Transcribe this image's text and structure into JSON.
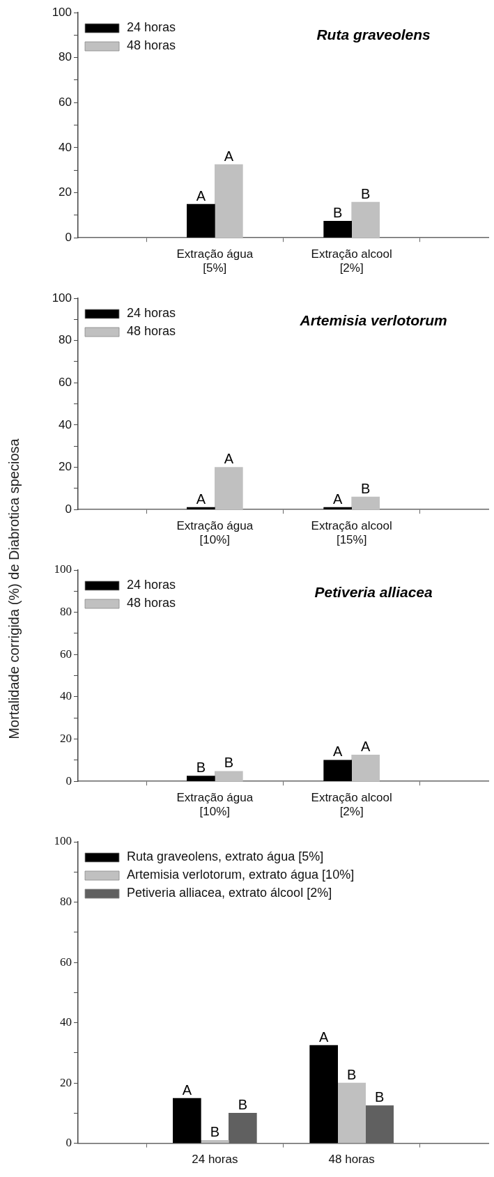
{
  "chart_data": [
    {
      "type": "bar",
      "title": "Ruta graveolens",
      "categories": [
        "Extração água [5%]",
        "Extração alcool [2%]"
      ],
      "series": [
        {
          "name": "24 horas",
          "color": "#000000",
          "values": [
            14.9,
            7.4
          ],
          "value_labels": [
            "A",
            "B"
          ]
        },
        {
          "name": "48 horas",
          "color": "#c0c0c0",
          "values": [
            32.5,
            15.8
          ],
          "value_labels": [
            "A",
            "B"
          ]
        }
      ],
      "ylim": [
        0,
        100
      ],
      "yticks": [
        0,
        {
          "value": 10,
          "label": null
        },
        20,
        {
          "value": 30,
          "label": null
        },
        40,
        {
          "value": 50,
          "label": null
        },
        60,
        {
          "value": 70,
          "label": null
        },
        80,
        {
          "value": 90,
          "label": null
        },
        100
      ],
      "legend": "top left"
    },
    {
      "type": "bar",
      "title": "Artemisia verlotorum",
      "categories": [
        "Extração água [10%]",
        "Extração alcool [15%]"
      ],
      "series": [
        {
          "name": "24 horas",
          "color": "#000000",
          "values": [
            1,
            1
          ],
          "value_labels": [
            "A",
            "A"
          ]
        },
        {
          "name": "48 horas",
          "color": "#c0c0c0",
          "values": [
            20,
            6
          ],
          "value_labels": [
            "A",
            "B"
          ]
        }
      ],
      "ylim": [
        0,
        100
      ],
      "yticks": [
        0,
        {
          "value": 10,
          "label": null
        },
        20,
        {
          "value": 30,
          "label": null
        },
        40,
        {
          "value": 50,
          "label": null
        },
        60,
        {
          "value": 70,
          "label": null
        },
        80,
        {
          "value": 90,
          "label": null
        },
        100
      ],
      "legend": "top left"
    },
    {
      "type": "bar",
      "title": "Petiveria alliacea",
      "ylabel": "Mortalidade corrigida (%) de Diabrotica speciosa",
      "categories": [
        "Extração água [10%]",
        "Extração alcool [2%]"
      ],
      "series": [
        {
          "name": "24 horas",
          "color": "#000000",
          "values": [
            2.5,
            10
          ],
          "value_labels": [
            "B",
            "A"
          ]
        },
        {
          "name": "48 horas",
          "color": "#c0c0c0",
          "values": [
            4.7,
            12.5
          ],
          "value_labels": [
            "B",
            "A"
          ]
        }
      ],
      "ylim": [
        0,
        100
      ],
      "yticks": [
        0,
        {
          "value": 10,
          "label": null
        },
        20,
        {
          "value": 30,
          "label": null
        },
        40,
        {
          "value": 50,
          "label": null
        },
        60,
        {
          "value": 70,
          "label": null
        },
        80,
        {
          "value": 90,
          "label": null
        },
        100
      ],
      "legend": "top left"
    },
    {
      "type": "bar",
      "categories": [
        "24 horas",
        "48 horas"
      ],
      "series": [
        {
          "name": "Ruta graveolens, extrato água [5%]",
          "color": "#000000",
          "values": [
            14.9,
            32.5
          ],
          "value_labels": [
            "A",
            "A"
          ]
        },
        {
          "name": "Artemisia verlotorum, extrato água [10%]",
          "color": "#c0c0c0",
          "values": [
            1,
            20
          ],
          "value_labels": [
            "B",
            "B"
          ]
        },
        {
          "name": "Petiveria alliacea, extrato álcool [2%]",
          "color": "#606060",
          "values": [
            10,
            12.5
          ],
          "value_labels": [
            "B",
            "B"
          ]
        }
      ],
      "ylim": [
        0,
        100
      ],
      "yticks": [
        0,
        {
          "value": 10,
          "label": null
        },
        20,
        {
          "value": 30,
          "label": null
        },
        40,
        {
          "value": 50,
          "label": null
        },
        60,
        {
          "value": 70,
          "label": null
        },
        80,
        {
          "value": 90,
          "label": null
        },
        100
      ],
      "legend": "top left"
    }
  ]
}
